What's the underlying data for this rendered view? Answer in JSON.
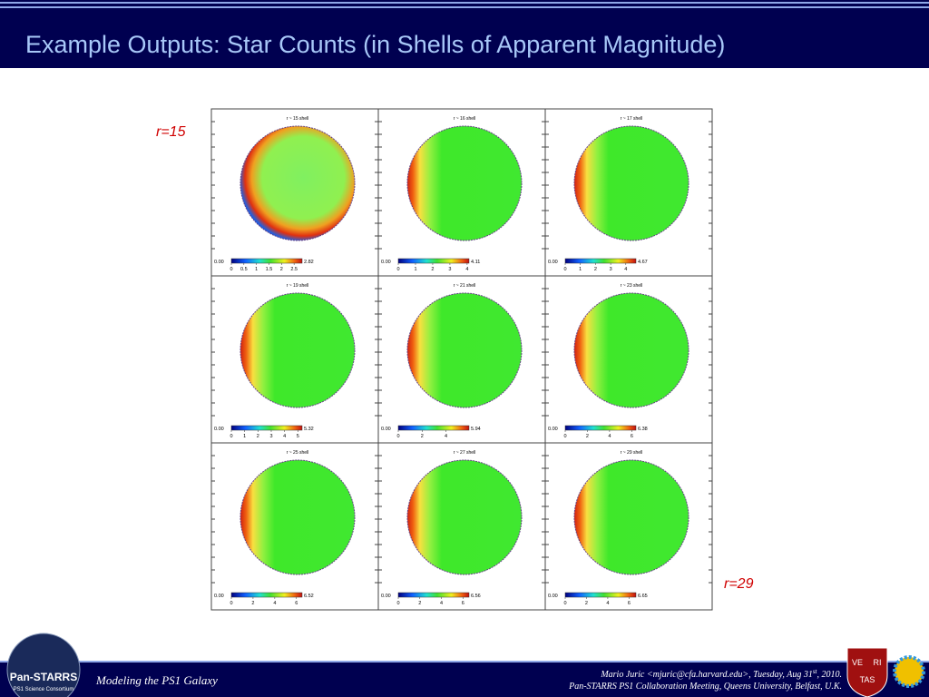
{
  "header": {
    "title": "Example Outputs: Star Counts (in Shells of Apparent Magnitude)"
  },
  "labels": {
    "first": "r=15",
    "last": "r=29"
  },
  "panels": [
    {
      "title": "r ~ 15 shell",
      "min": "0.00",
      "max": 2.82,
      "ticks": [
        0,
        0.5,
        1,
        1.5,
        2,
        2.5
      ]
    },
    {
      "title": "r ~ 16 shell",
      "min": "0.00",
      "max": 4.11,
      "ticks": [
        0,
        1,
        2,
        3,
        4
      ]
    },
    {
      "title": "r ~ 17 shell",
      "min": "0.00",
      "max": 4.67,
      "ticks": [
        0,
        1,
        2,
        3,
        4
      ]
    },
    {
      "title": "r ~ 19 shell",
      "min": "0.00",
      "max": 5.32,
      "ticks": [
        0,
        1,
        2,
        3,
        4,
        5
      ]
    },
    {
      "title": "r ~ 21 shell",
      "min": "0.00",
      "max": 5.94,
      "ticks": [
        0,
        2,
        4
      ]
    },
    {
      "title": "r ~ 23 shell",
      "min": "0.00",
      "max": 6.38,
      "ticks": [
        0,
        2,
        4,
        6
      ]
    },
    {
      "title": "r ~ 25 shell",
      "min": "0.00",
      "max": 6.52,
      "ticks": [
        0,
        2,
        4,
        6
      ]
    },
    {
      "title": "r ~ 27 shell",
      "min": "0.00",
      "max": 6.56,
      "ticks": [
        0,
        2,
        4,
        6
      ]
    },
    {
      "title": "r ~ 29 shell",
      "min": "0.00",
      "max": 6.65,
      "ticks": [
        0,
        2,
        4,
        6
      ]
    }
  ],
  "footer": {
    "left": "Modeling the PS1 Galaxy",
    "line1": [
      "Mario Juric <mjuric@cfa.harvard.edu>, Tuesday, Aug 31",
      "st",
      ", 2010."
    ],
    "line2": "Pan-STARRS PS1 Collaboration Meeting, Queens University, Belfast, U.K.",
    "logo": [
      "Pan-STARRS",
      "PS1 Science Consortium"
    ],
    "crest": [
      "VE",
      "RI",
      "TAS"
    ]
  }
}
